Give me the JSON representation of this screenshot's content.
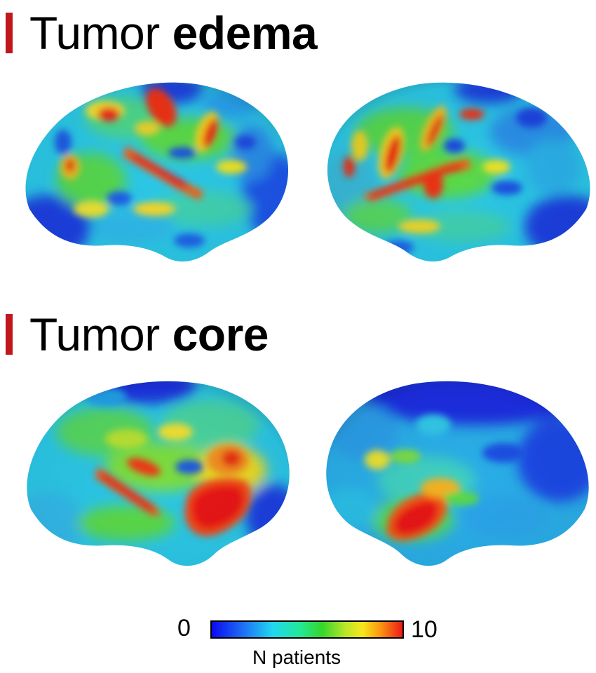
{
  "panels": [
    {
      "title_prefix": "Tumor",
      "title_bold": "edema"
    },
    {
      "title_prefix": "Tumor",
      "title_bold": "core"
    }
  ],
  "colorbar": {
    "min_label": "0",
    "max_label": "10",
    "label": "N patients",
    "colormap": "jet"
  },
  "colors": {
    "accent_bar": "#c0161e",
    "low": "#1010e0",
    "high": "#e41818"
  }
}
